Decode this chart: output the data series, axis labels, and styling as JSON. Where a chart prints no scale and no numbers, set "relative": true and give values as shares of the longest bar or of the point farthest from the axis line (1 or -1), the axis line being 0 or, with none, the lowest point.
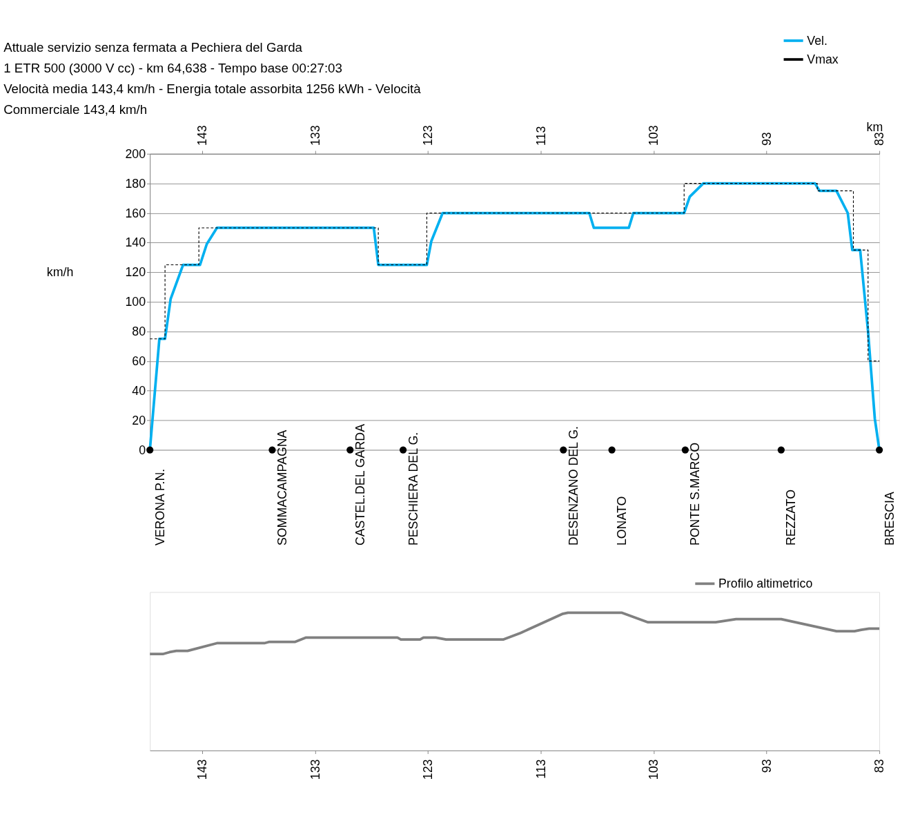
{
  "chart_data": [
    {
      "type": "line",
      "title": [
        "Attuale servizio senza fermata a Pechiera del Garda",
        "1 ETR 500 (3000 V cc)  -  km 64,638  -  Tempo base 00:27:03",
        "Velocità media 143,4 km/h  -  Energia totale assorbita 1256 kWh  -  Velocità",
        "Commerciale 143,4 km/h"
      ],
      "xlabel": "km",
      "ylabel": "km/h",
      "xlim": [
        147.64,
        83
      ],
      "xticks": [
        143,
        133,
        123,
        113,
        103,
        93,
        83
      ],
      "ylim": [
        0,
        200
      ],
      "yticks": [
        0,
        20,
        40,
        60,
        80,
        100,
        120,
        140,
        160,
        180,
        200
      ],
      "grid": "y",
      "legend": "top right",
      "series": [
        {
          "name": "Vel.",
          "color": "#00b0f0",
          "line_style": "solid",
          "x": [
            147.64,
            146.8,
            146.3,
            145.8,
            144.7,
            143.2,
            142.6,
            141.7,
            127.8,
            127.4,
            123.1,
            122.7,
            121.7,
            108.7,
            108.3,
            105.2,
            104.8,
            100.3,
            99.8,
            98.6,
            88.7,
            88.3,
            86.8,
            85.8,
            85.4,
            84.7,
            84.0,
            83.4,
            83.0
          ],
          "values": [
            0,
            75,
            75,
            102,
            125,
            125,
            139,
            150,
            150,
            125,
            125,
            141,
            160,
            160,
            150,
            150,
            160,
            160,
            171,
            180,
            180,
            175,
            175,
            160,
            135,
            135,
            80,
            21,
            0
          ]
        },
        {
          "name": "Vmax",
          "color": "#000000",
          "line_style": "dashed",
          "x": [
            147.64,
            146.3,
            146.3,
            143.3,
            143.3,
            127.4,
            127.4,
            123.1,
            123.1,
            100.3,
            100.3,
            88.5,
            88.5,
            85.3,
            85.3,
            84.0,
            84.0,
            83.0
          ],
          "values": [
            75,
            75,
            125,
            125,
            150,
            150,
            125,
            125,
            160,
            160,
            180,
            180,
            175,
            175,
            135,
            135,
            60,
            60
          ]
        },
        {
          "type": "scatter",
          "color": "#000000",
          "marker": "circle",
          "x": [
            147.64,
            136.8,
            129.9,
            125.2,
            111.0,
            106.7,
            100.2,
            91.7,
            83.0
          ],
          "values": [
            0,
            0,
            0,
            0,
            0,
            0,
            0,
            0,
            0
          ]
        }
      ],
      "annotations": [
        "VERONA  P.N.",
        "SOMMACAMPAGNA",
        "CASTEL.DEL  GARDA",
        "PESCHIERA  DEL G.",
        "DESENZANO  DEL G.",
        "LONATO",
        "PONTE  S.MARCO",
        "REZZATO",
        "BRESCIA"
      ]
    },
    {
      "type": "line",
      "relative": true,
      "xlim": [
        147.64,
        83
      ],
      "xticks": [
        143,
        133,
        123,
        113,
        103,
        93,
        83
      ],
      "tick_labels": "x",
      "legend": "top right",
      "series": [
        {
          "name": "Profilo altimetrico",
          "color": "#808080",
          "line_style": "solid",
          "x": [
            147.64,
            146.5,
            145.9,
            145.3,
            144.3,
            141.7,
            137.5,
            137.1,
            134.8,
            133.8,
            125.7,
            125.4,
            123.7,
            123.4,
            122.3,
            121.4,
            116.3,
            114.8,
            111.1,
            110.6,
            105.8,
            103.5,
            97.5,
            95.7,
            91.7,
            86.8,
            85.2,
            84.6,
            83.9,
            83.0
          ],
          "values": [
            0.7,
            0.7,
            0.714,
            0.723,
            0.723,
            0.779,
            0.779,
            0.788,
            0.788,
            0.82,
            0.82,
            0.806,
            0.806,
            0.82,
            0.82,
            0.806,
            0.806,
            0.853,
            0.991,
            1,
            1,
            0.931,
            0.931,
            0.954,
            0.954,
            0.866,
            0.866,
            0.876,
            0.885,
            0.885
          ]
        }
      ]
    }
  ]
}
